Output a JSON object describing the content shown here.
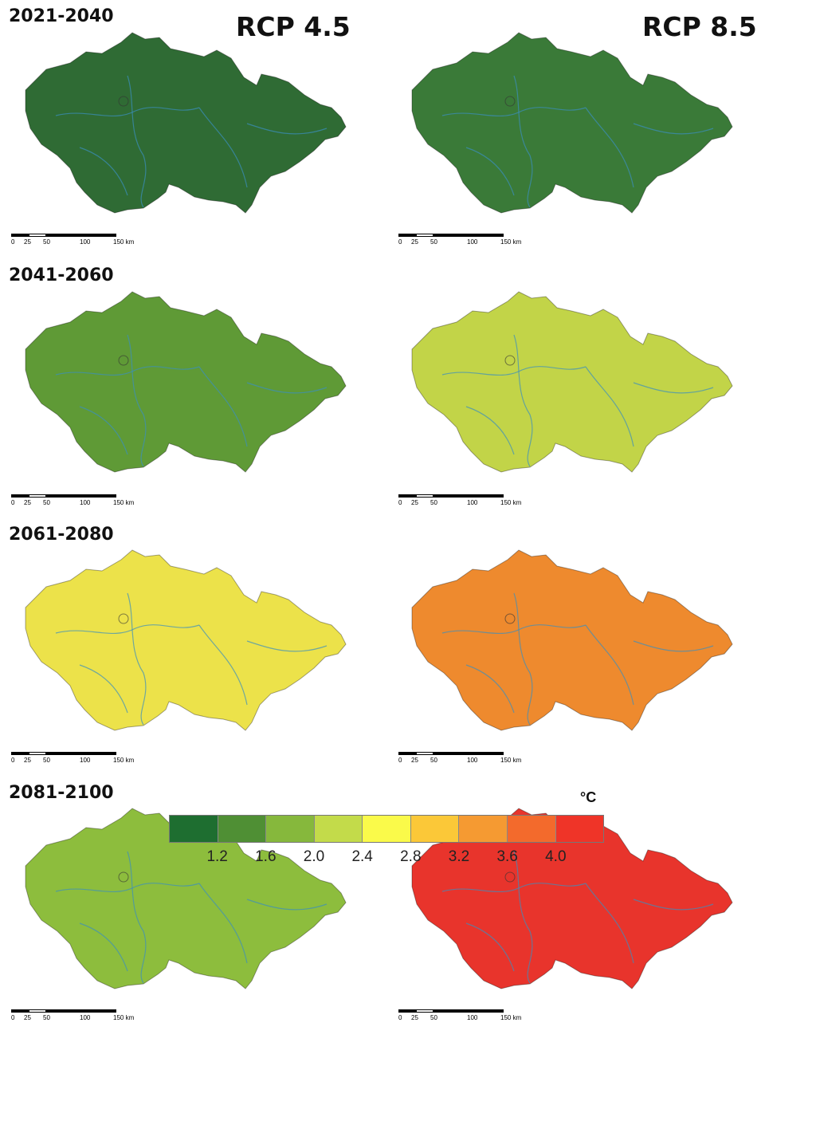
{
  "header": {
    "left_title": "RCP 4.5",
    "right_title": "RCP 8.5"
  },
  "periods": [
    {
      "label": "2021-2040",
      "rcp45_color": "#2f6b34",
      "rcp85_color": "#3a7a38"
    },
    {
      "label": "2041-2060",
      "rcp45_color": "#5f9a36",
      "rcp85_color": "#c2d448"
    },
    {
      "label": "2061-2080",
      "rcp45_color": "#ece24a",
      "rcp85_color": "#ee8a2e"
    },
    {
      "label": "2081-2100",
      "rcp45_color": "#8dbd3d",
      "rcp85_color": "#e8342c"
    }
  ],
  "scalebar": {
    "labels": [
      "0",
      "25",
      "50",
      "100",
      "150 km"
    ]
  },
  "legend": {
    "unit": "°C",
    "colors": [
      "#1e6e30",
      "#4f8f34",
      "#86b83c",
      "#c3db4a",
      "#fafa4a",
      "#fbc838",
      "#f59a32",
      "#f36a2c",
      "#ef3428"
    ],
    "ticks": [
      "1.2",
      "1.6",
      "2.0",
      "2.4",
      "2.8",
      "3.2",
      "3.6",
      "4.0"
    ]
  }
}
